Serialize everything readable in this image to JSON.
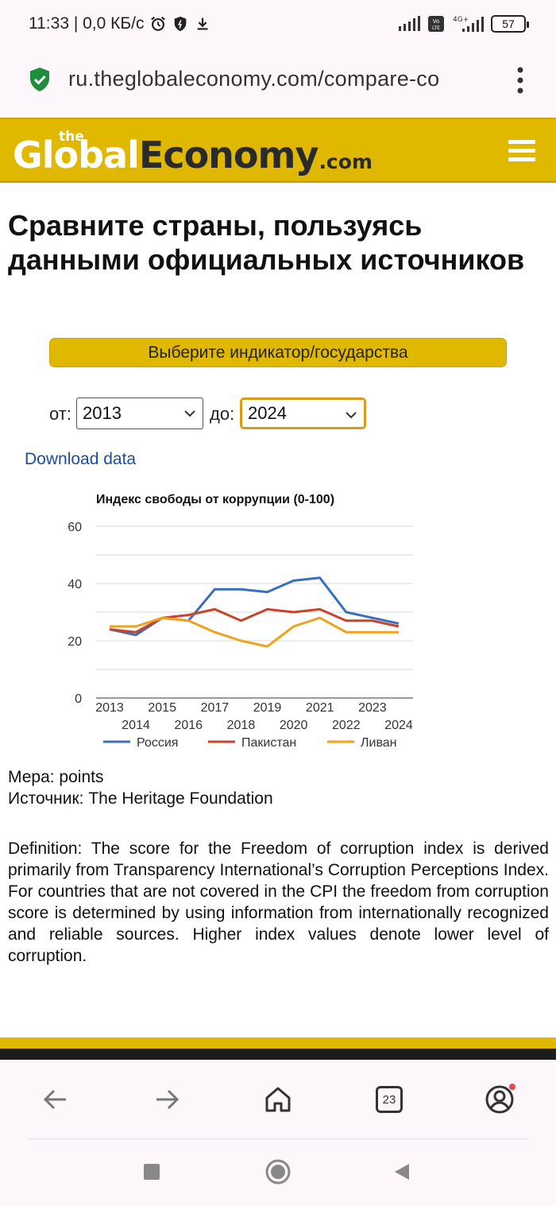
{
  "status_bar": {
    "time_speed": "11:33 | 0,0 КБ/с",
    "network": "4G+",
    "volte": "Vo LTE",
    "battery": "57"
  },
  "browser": {
    "url": "ru.theglobaleconomy.com/compare-co",
    "tabs_count": "23"
  },
  "site": {
    "logo_the": "the",
    "logo_global": "Global",
    "logo_economy": "Economy",
    "logo_com": ".com"
  },
  "page": {
    "title": "Сравните страны, пользуясь данными официальных источников",
    "indicator_button": "Выберите индикатор/государства",
    "from_label": "от:",
    "from_value": "2013",
    "to_label": "до:",
    "to_value": "2024",
    "download_link": "Download data",
    "measure": "Мера: points",
    "source": "Источник: The Heritage Foundation",
    "definition": "Definition: The score for the Freedom of corruption index is derived primarily from Transparency International’s Corruption Perceptions Index. For countries that are not covered in the CPI the freedom from corruption score is determined by using information from internationally recognized and reliable sources. Higher index values denote lower level of corruption."
  },
  "chart_data": {
    "type": "line",
    "title": "Индекс свободы от коррупции (0-100)",
    "xlabel": "",
    "ylabel": "",
    "x": [
      2013,
      2014,
      2015,
      2016,
      2017,
      2018,
      2019,
      2020,
      2021,
      2022,
      2023,
      2024
    ],
    "ylim": [
      0,
      60
    ],
    "yticks": [
      0,
      20,
      40,
      60
    ],
    "grid": true,
    "legend": "bottom",
    "series": [
      {
        "name": "Россия",
        "color": "#3a6fbf",
        "values": [
          24,
          22,
          28,
          27,
          38,
          38,
          37,
          41,
          42,
          30,
          28,
          26
        ]
      },
      {
        "name": "Пакистан",
        "color": "#c9432a",
        "values": [
          24,
          23,
          28,
          29,
          31,
          27,
          31,
          30,
          31,
          27,
          27,
          25
        ]
      },
      {
        "name": "Ливан",
        "color": "#f0a21e",
        "values": [
          25,
          25,
          28,
          27,
          23,
          20,
          18,
          25,
          28,
          23,
          23,
          23
        ]
      }
    ]
  }
}
